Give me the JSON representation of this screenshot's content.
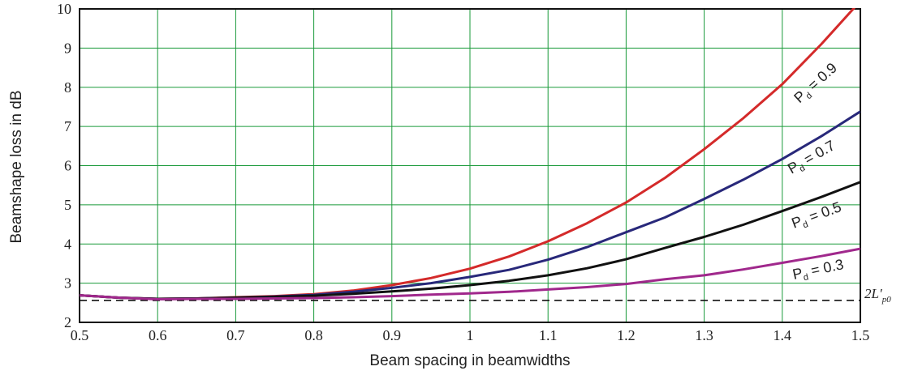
{
  "chart_data": {
    "type": "line",
    "xlabel": "Beam spacing in beamwidths",
    "ylabel": "Beamshape loss in dB",
    "xlim": [
      0.5,
      1.5
    ],
    "ylim": [
      2,
      10
    ],
    "xticks": [
      "0.5",
      "0.6",
      "0.7",
      "0.8",
      "0.9",
      "1",
      "1.1",
      "1.2",
      "1.3",
      "1.4",
      "1.5"
    ],
    "yticks": [
      "2",
      "3",
      "4",
      "5",
      "6",
      "7",
      "8",
      "9",
      "10"
    ],
    "grid": true,
    "grid_color": "#1a9a3a",
    "x": [
      0.5,
      0.55,
      0.6,
      0.65,
      0.7,
      0.75,
      0.8,
      0.85,
      0.9,
      0.95,
      1.0,
      1.05,
      1.1,
      1.15,
      1.2,
      1.25,
      1.3,
      1.35,
      1.4,
      1.45,
      1.5
    ],
    "series": [
      {
        "label_main": "P",
        "label_sub": "d",
        "label_value": " = 0.9",
        "color": "#d42a2a",
        "values": [
          2.69,
          2.63,
          2.6,
          2.61,
          2.64,
          2.67,
          2.72,
          2.81,
          2.95,
          3.13,
          3.37,
          3.68,
          4.07,
          4.53,
          5.06,
          5.69,
          6.42,
          7.21,
          8.08,
          9.1,
          10.2
        ]
      },
      {
        "label_main": "P",
        "label_sub": "d",
        "label_value": " = 0.7",
        "color": "#28287a",
        "values": [
          2.69,
          2.63,
          2.6,
          2.61,
          2.63,
          2.66,
          2.7,
          2.78,
          2.88,
          3.0,
          3.16,
          3.34,
          3.6,
          3.92,
          4.3,
          4.68,
          5.15,
          5.64,
          6.17,
          6.75,
          7.38
        ]
      },
      {
        "label_main": "P",
        "label_sub": "d",
        "label_value": " = 0.5",
        "color": "#111111",
        "values": [
          2.69,
          2.63,
          2.6,
          2.61,
          2.63,
          2.65,
          2.68,
          2.73,
          2.79,
          2.86,
          2.95,
          3.06,
          3.2,
          3.38,
          3.61,
          3.9,
          4.18,
          4.49,
          4.84,
          5.2,
          5.58
        ]
      },
      {
        "label_main": "P",
        "label_sub": "d",
        "label_value": " = 0.3",
        "color": "#a0288c",
        "values": [
          2.69,
          2.63,
          2.59,
          2.6,
          2.6,
          2.61,
          2.62,
          2.64,
          2.67,
          2.71,
          2.74,
          2.78,
          2.84,
          2.9,
          2.98,
          3.1,
          3.2,
          3.35,
          3.52,
          3.69,
          3.88
        ]
      }
    ],
    "reference_line": {
      "value": 2.56,
      "style": "dashed",
      "label_main": "2L",
      "label_prime": "′",
      "label_sub": "p0"
    }
  }
}
